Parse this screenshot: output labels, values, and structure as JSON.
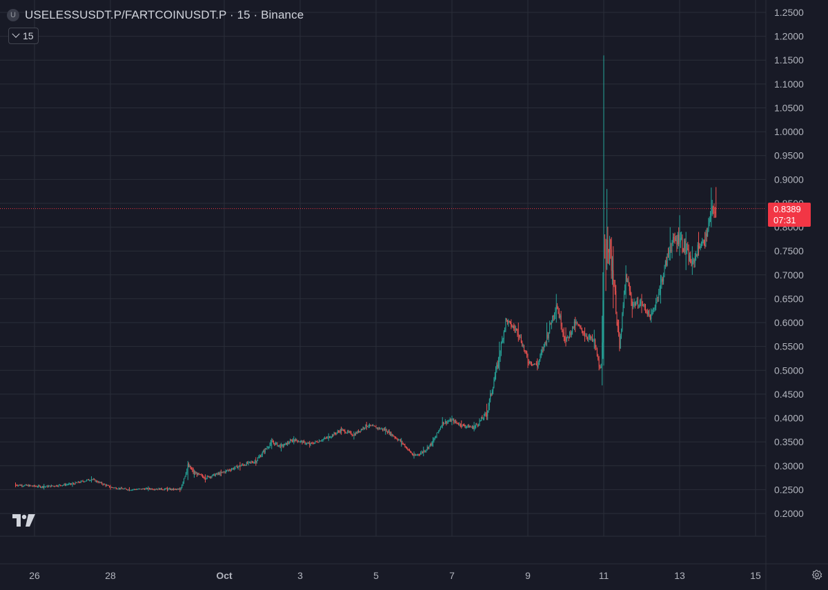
{
  "header": {
    "symbol_badge": "U",
    "title": "USELESSUSDT.P/FARTCOINUSDT.P · 15 · Binance"
  },
  "interval_button": {
    "label": "15"
  },
  "last_price": {
    "value": "0.8389",
    "countdown": "07:31",
    "color": "#f23645"
  },
  "colors": {
    "background": "#181a26",
    "up": "#26a69a",
    "down": "#ef5350",
    "grid": "#2a2e39"
  },
  "icons": {
    "logo": "tradingview-logo-icon",
    "settings": "gear-icon",
    "dropdown": "chevron-down-icon"
  },
  "chart_data": {
    "type": "line",
    "title": "USELESSUSDT.P/FARTCOINUSDT.P",
    "xlabel": "",
    "ylabel": "",
    "ylim": [
      0.17,
      1.27
    ],
    "x_tick_labels": [
      "26",
      "28",
      "Oct",
      "3",
      "5",
      "7",
      "9",
      "11",
      "13",
      "15"
    ],
    "x_tick_dates": [
      "2025-09-26",
      "2025-09-28",
      "2025-10-01",
      "2025-10-03",
      "2025-10-05",
      "2025-10-07",
      "2025-10-09",
      "2025-10-11",
      "2025-10-13",
      "2025-10-15"
    ],
    "y_ticks": [
      "1.2500",
      "1.2000",
      "1.1500",
      "1.1000",
      "1.0500",
      "1.0000",
      "0.9500",
      "0.9000",
      "0.8500",
      "0.8000",
      "0.7500",
      "0.7000",
      "0.6500",
      "0.6000",
      "0.5500",
      "0.5000",
      "0.4500",
      "0.4000",
      "0.3500",
      "0.3000",
      "0.2500",
      "0.2000"
    ],
    "grid": true,
    "series": [
      {
        "x": [
          "2025-09-25 12:00",
          "2025-09-26 06:00",
          "2025-09-27 00:00",
          "2025-09-27 12:00",
          "2025-09-28 00:00",
          "2025-09-28 12:00",
          "2025-09-29 00:00",
          "2025-09-29 12:00",
          "2025-09-29 20:00",
          "2025-09-30 01:00",
          "2025-09-30 05:00",
          "2025-09-30 12:00",
          "2025-09-30 22:00",
          "2025-10-01 10:00",
          "2025-10-01 20:00",
          "2025-10-02 06:00",
          "2025-10-02 12:00",
          "2025-10-02 20:00",
          "2025-10-03 06:00",
          "2025-10-03 18:00",
          "2025-10-04 02:00",
          "2025-10-04 10:00",
          "2025-10-04 18:00",
          "2025-10-05 06:00",
          "2025-10-05 16:00",
          "2025-10-06 00:00",
          "2025-10-06 06:00",
          "2025-10-06 12:00",
          "2025-10-06 18:00",
          "2025-10-07 00:00",
          "2025-10-07 06:00",
          "2025-10-07 14:00",
          "2025-10-07 22:00",
          "2025-10-08 06:00",
          "2025-10-08 10:00",
          "2025-10-08 18:00",
          "2025-10-09 00:00",
          "2025-10-09 06:00",
          "2025-10-09 12:00",
          "2025-10-09 18:00",
          "2025-10-10 00:00",
          "2025-10-10 06:00",
          "2025-10-10 12:00",
          "2025-10-10 18:00",
          "2025-10-10 21:00",
          "2025-10-10 23:00",
          "2025-10-11 00:00",
          "2025-10-11 02:00",
          "2025-10-11 06:00",
          "2025-10-11 10:00",
          "2025-10-11 14:00",
          "2025-10-11 18:00",
          "2025-10-12 00:00",
          "2025-10-12 06:00",
          "2025-10-12 12:00",
          "2025-10-12 18:00",
          "2025-10-13 00:00",
          "2025-10-13 04:00",
          "2025-10-13 08:00",
          "2025-10-13 12:00",
          "2025-10-13 16:00",
          "2025-10-13 20:00",
          "2025-10-13 23:00"
        ],
        "y": [
          0.26,
          0.256,
          0.262,
          0.272,
          0.255,
          0.25,
          0.252,
          0.251,
          0.25,
          0.3,
          0.285,
          0.275,
          0.285,
          0.3,
          0.31,
          0.35,
          0.34,
          0.355,
          0.345,
          0.36,
          0.375,
          0.365,
          0.385,
          0.375,
          0.35,
          0.32,
          0.33,
          0.35,
          0.39,
          0.395,
          0.385,
          0.38,
          0.41,
          0.53,
          0.605,
          0.58,
          0.52,
          0.51,
          0.57,
          0.64,
          0.56,
          0.6,
          0.575,
          0.56,
          0.51,
          0.505,
          0.71,
          0.79,
          0.7,
          0.545,
          0.7,
          0.64,
          0.64,
          0.61,
          0.68,
          0.76,
          0.78,
          0.75,
          0.72,
          0.76,
          0.77,
          0.83,
          0.839
        ],
        "high": [
          0.265,
          0.262,
          0.266,
          0.278,
          0.26,
          0.255,
          0.257,
          0.256,
          0.255,
          0.31,
          0.292,
          0.282,
          0.292,
          0.308,
          0.318,
          0.358,
          0.348,
          0.362,
          0.352,
          0.368,
          0.382,
          0.372,
          0.392,
          0.382,
          0.358,
          0.33,
          0.34,
          0.36,
          0.402,
          0.405,
          0.395,
          0.392,
          0.43,
          0.56,
          0.61,
          0.6,
          0.535,
          0.525,
          0.6,
          0.66,
          0.59,
          0.612,
          0.59,
          0.585,
          0.53,
          0.515,
          1.16,
          0.88,
          0.76,
          0.56,
          0.72,
          0.65,
          0.66,
          0.63,
          0.7,
          0.8,
          0.825,
          0.79,
          0.76,
          0.79,
          0.79,
          0.883,
          0.884
        ],
        "low": [
          0.255,
          0.25,
          0.256,
          0.265,
          0.25,
          0.247,
          0.247,
          0.246,
          0.245,
          0.27,
          0.275,
          0.265,
          0.278,
          0.29,
          0.3,
          0.335,
          0.33,
          0.345,
          0.338,
          0.352,
          0.365,
          0.355,
          0.375,
          0.365,
          0.34,
          0.315,
          0.32,
          0.34,
          0.38,
          0.385,
          0.378,
          0.372,
          0.4,
          0.5,
          0.58,
          0.56,
          0.505,
          0.5,
          0.55,
          0.6,
          0.55,
          0.58,
          0.56,
          0.545,
          0.5,
          0.5,
          0.51,
          0.72,
          0.63,
          0.54,
          0.65,
          0.61,
          0.62,
          0.6,
          0.64,
          0.73,
          0.74,
          0.71,
          0.7,
          0.74,
          0.755,
          0.8,
          0.82
        ]
      }
    ]
  }
}
